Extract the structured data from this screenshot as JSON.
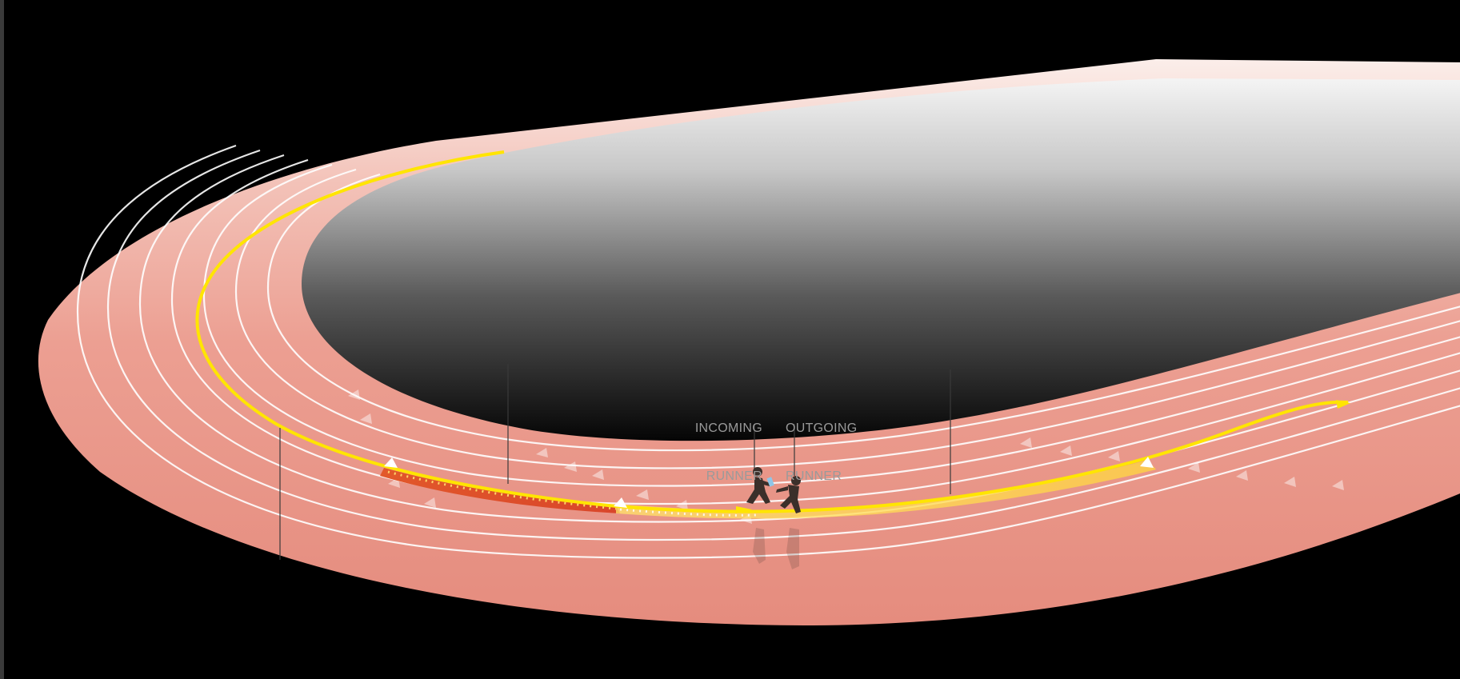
{
  "labels": {
    "incoming": {
      "line1": "INCOMING",
      "line2": "RUNNER"
    },
    "outgoing": {
      "line1": "OUTGOING",
      "line2": "RUNNER"
    }
  },
  "colors": {
    "background": "#000000",
    "track": "#e8978a",
    "track_inner": "#f2b3a6",
    "lane_lines": "#ffffff",
    "path": "#ffe500",
    "exchange_zone": "#e8622a",
    "runner": "#3a2e2a",
    "baton": "#8fc6e8"
  },
  "icons": [
    "track-icon",
    "runner-icon",
    "runner-icon",
    "baton-icon",
    "arrow-icon"
  ]
}
